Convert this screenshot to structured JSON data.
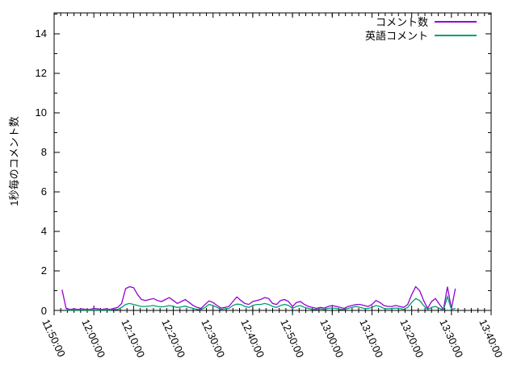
{
  "background": "#ffffff",
  "axis_color": "#000000",
  "legend": {
    "entries": [
      {
        "label": "コメント数",
        "color": "#9400d3"
      },
      {
        "label": "英語コメント",
        "color": "#009e73"
      }
    ]
  },
  "chart_data": {
    "type": "line",
    "title": "",
    "xlabel": "",
    "ylabel": "1秒毎のコメント数",
    "ylim": [
      0,
      15
    ],
    "y_major_ticks": [
      0,
      2,
      4,
      6,
      8,
      10,
      12,
      14
    ],
    "y_minor_ticks": [
      1,
      3,
      5,
      7,
      9,
      11,
      13,
      15
    ],
    "x_tick_labels": [
      "11:50:00",
      "12:00:00",
      "12:10:00",
      "12:20:00",
      "12:30:00",
      "12:40:00",
      "12:50:00",
      "13:00:00",
      "13:10:00",
      "13:20:00",
      "13:30:00",
      "13:40:00"
    ],
    "x_axis_start": "11:50:00",
    "x_axis_end": "13:40:00",
    "x_axis_minutes": 110,
    "x_major_every_min": 10,
    "x_minor_every_sec": 100,
    "grid": false,
    "legend_position": "top-right-inside",
    "series": [
      {
        "name": "コメント数",
        "color": "#9400d3",
        "start_time": "11:52:00",
        "step_seconds": 60,
        "values": [
          1.05,
          0.1,
          0.05,
          0.08,
          0.05,
          0.08,
          0.05,
          0.05,
          0.1,
          0.08,
          0.05,
          0.08,
          0.05,
          0.1,
          0.15,
          0.35,
          1.1,
          1.2,
          1.15,
          0.8,
          0.55,
          0.5,
          0.55,
          0.6,
          0.5,
          0.45,
          0.55,
          0.65,
          0.5,
          0.35,
          0.45,
          0.55,
          0.4,
          0.25,
          0.15,
          0.1,
          0.3,
          0.48,
          0.4,
          0.25,
          0.12,
          0.15,
          0.2,
          0.45,
          0.68,
          0.5,
          0.35,
          0.3,
          0.45,
          0.5,
          0.55,
          0.65,
          0.6,
          0.35,
          0.3,
          0.5,
          0.55,
          0.45,
          0.2,
          0.4,
          0.45,
          0.3,
          0.2,
          0.15,
          0.1,
          0.15,
          0.12,
          0.2,
          0.25,
          0.2,
          0.15,
          0.1,
          0.2,
          0.25,
          0.3,
          0.3,
          0.25,
          0.2,
          0.3,
          0.5,
          0.4,
          0.25,
          0.2,
          0.2,
          0.25,
          0.2,
          0.15,
          0.3,
          0.8,
          1.2,
          1.0,
          0.5,
          0.1,
          0.45,
          0.6,
          0.3,
          0.05,
          1.2,
          0.08,
          1.1
        ]
      },
      {
        "name": "英語コメント",
        "color": "#009e73",
        "start_time": "11:53:00",
        "step_seconds": 60,
        "values": [
          0.02,
          0.03,
          0.02,
          0.03,
          0.02,
          0.02,
          0.03,
          0.02,
          0.03,
          0.02,
          0.03,
          0.02,
          0.05,
          0.05,
          0.15,
          0.3,
          0.35,
          0.3,
          0.25,
          0.2,
          0.2,
          0.22,
          0.25,
          0.2,
          0.18,
          0.2,
          0.25,
          0.2,
          0.15,
          0.18,
          0.22,
          0.15,
          0.1,
          0.05,
          0.05,
          0.15,
          0.3,
          0.25,
          0.15,
          0.05,
          0.08,
          0.1,
          0.25,
          0.32,
          0.3,
          0.2,
          0.15,
          0.25,
          0.3,
          0.3,
          0.35,
          0.3,
          0.2,
          0.15,
          0.25,
          0.3,
          0.25,
          0.1,
          0.2,
          0.25,
          0.15,
          0.1,
          0.05,
          0.05,
          0.08,
          0.05,
          0.1,
          0.12,
          0.1,
          0.05,
          0.05,
          0.1,
          0.15,
          0.2,
          0.15,
          0.1,
          0.1,
          0.15,
          0.25,
          0.2,
          0.1,
          0.08,
          0.1,
          0.12,
          0.1,
          0.05,
          0.15,
          0.4,
          0.6,
          0.5,
          0.25,
          0.05,
          0.15,
          0.2,
          0.1,
          0.02,
          0.7,
          0.05,
          0.1
        ]
      }
    ]
  }
}
